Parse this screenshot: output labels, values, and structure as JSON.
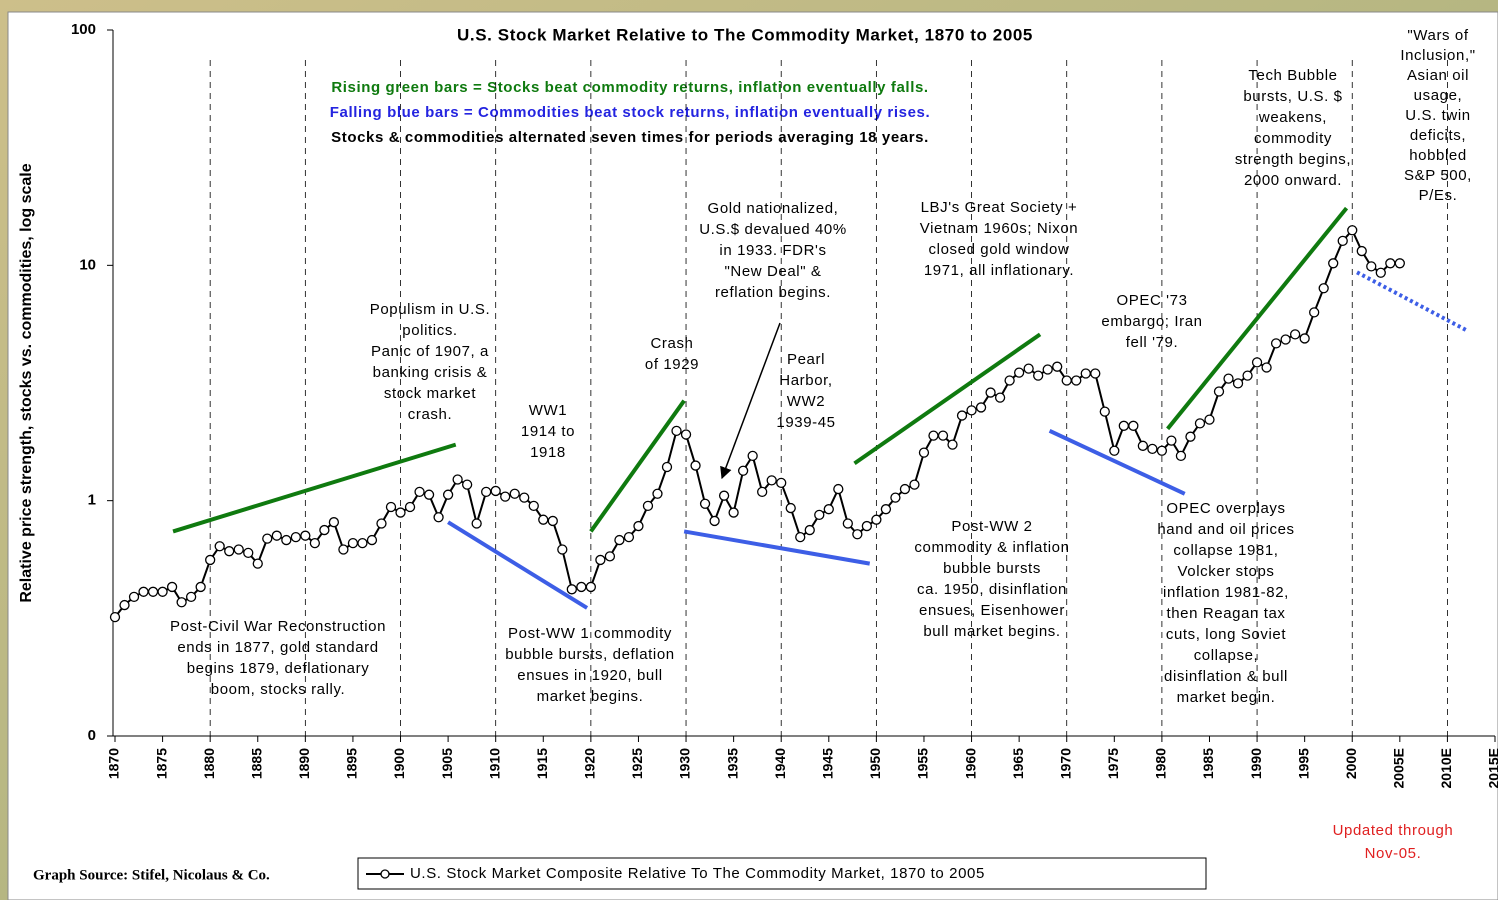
{
  "chart_data": {
    "type": "line",
    "title": "U.S. Stock Market Relative to The Commodity Market, 1870 to 2005",
    "subtitles": [
      {
        "text": "Rising green bars = Stocks beat commodity returns, inflation eventually falls.",
        "color": "#0f7a0f"
      },
      {
        "text": "Falling blue bars = Commodities beat stock returns, inflation eventually rises.",
        "color": "#2424e0"
      },
      {
        "text": "Stocks & commodities alternated seven times for periods averaging 18 years.",
        "color": "#000000"
      }
    ],
    "y_label": "Relative price strength, stocks vs. commodities, log scale",
    "log_scale": true,
    "ylim": [
      0.1,
      100
    ],
    "yticks": [
      {
        "value": 0.1,
        "label": "0"
      },
      1,
      10,
      100
    ],
    "xlim": [
      1870,
      2015
    ],
    "xticks": [
      1870,
      1875,
      1880,
      1885,
      1890,
      1895,
      1900,
      1905,
      1910,
      1915,
      1920,
      1925,
      1930,
      1935,
      1940,
      1945,
      1950,
      1955,
      1960,
      1965,
      1970,
      1975,
      1980,
      1985,
      1990,
      1995,
      2000,
      {
        "value": 2005,
        "label": "2005E"
      },
      {
        "value": 2010,
        "label": "2010E"
      },
      {
        "value": 2015,
        "label": "2015E"
      }
    ],
    "vlines": [
      1880,
      1890,
      1900,
      1910,
      1920,
      1930,
      1940,
      1950,
      1960,
      1970,
      1980,
      1990,
      2000,
      2010
    ],
    "x": [
      1870,
      1871,
      1872,
      1873,
      1874,
      1875,
      1876,
      1877,
      1878,
      1879,
      1880,
      1881,
      1882,
      1883,
      1884,
      1885,
      1886,
      1887,
      1888,
      1889,
      1890,
      1891,
      1892,
      1893,
      1894,
      1895,
      1896,
      1897,
      1898,
      1899,
      1900,
      1901,
      1902,
      1903,
      1904,
      1905,
      1906,
      1907,
      1908,
      1909,
      1910,
      1911,
      1912,
      1913,
      1914,
      1915,
      1916,
      1917,
      1918,
      1919,
      1920,
      1921,
      1922,
      1923,
      1924,
      1925,
      1926,
      1927,
      1928,
      1929,
      1930,
      1931,
      1932,
      1933,
      1934,
      1935,
      1936,
      1937,
      1938,
      1939,
      1940,
      1941,
      1942,
      1943,
      1944,
      1945,
      1946,
      1947,
      1948,
      1949,
      1950,
      1951,
      1952,
      1953,
      1954,
      1955,
      1956,
      1957,
      1958,
      1959,
      1960,
      1961,
      1962,
      1963,
      1964,
      1965,
      1966,
      1967,
      1968,
      1969,
      1970,
      1971,
      1972,
      1973,
      1974,
      1975,
      1976,
      1977,
      1978,
      1979,
      1980,
      1981,
      1982,
      1983,
      1984,
      1985,
      1986,
      1987,
      1988,
      1989,
      1990,
      1991,
      1992,
      1993,
      1994,
      1995,
      1996,
      1997,
      1998,
      1999,
      2000,
      2001,
      2002,
      2003,
      2004,
      2005
    ],
    "series": [
      {
        "name": "U.S. Stock Market Composite Relative To The Commodity Market, 1870 to 2005",
        "color": "#000000",
        "values": [
          0.32,
          0.36,
          0.39,
          0.41,
          0.41,
          0.41,
          0.43,
          0.37,
          0.39,
          0.43,
          0.56,
          0.64,
          0.61,
          0.62,
          0.6,
          0.54,
          0.69,
          0.71,
          0.68,
          0.7,
          0.71,
          0.66,
          0.75,
          0.81,
          0.62,
          0.66,
          0.66,
          0.68,
          0.8,
          0.94,
          0.89,
          0.94,
          1.09,
          1.06,
          0.85,
          1.06,
          1.23,
          1.17,
          0.8,
          1.09,
          1.1,
          1.04,
          1.07,
          1.03,
          0.95,
          0.83,
          0.82,
          0.62,
          0.42,
          0.43,
          0.43,
          0.56,
          0.58,
          0.68,
          0.7,
          0.78,
          0.95,
          1.07,
          1.39,
          1.98,
          1.91,
          1.41,
          0.97,
          0.82,
          1.05,
          0.89,
          1.34,
          1.55,
          1.09,
          1.22,
          1.19,
          0.93,
          0.7,
          0.75,
          0.87,
          0.92,
          1.12,
          0.8,
          0.72,
          0.78,
          0.83,
          0.92,
          1.03,
          1.12,
          1.17,
          1.6,
          1.89,
          1.89,
          1.73,
          2.3,
          2.42,
          2.49,
          2.88,
          2.74,
          3.24,
          3.5,
          3.64,
          3.4,
          3.61,
          3.71,
          3.24,
          3.24,
          3.47,
          3.47,
          2.39,
          1.63,
          2.08,
          2.08,
          1.71,
          1.66,
          1.63,
          1.8,
          1.55,
          1.87,
          2.13,
          2.21,
          2.91,
          3.3,
          3.15,
          3.4,
          3.87,
          3.68,
          4.66,
          4.84,
          5.09,
          4.89,
          6.31,
          7.99,
          10.2,
          12.7,
          14.1,
          11.5,
          9.9,
          9.3,
          10.2,
          10.2
        ]
      }
    ],
    "trend_lines": [
      {
        "color": "#0f7a0f",
        "x": [
          1876.1,
          1905.8
        ],
        "y": [
          0.74,
          1.73
        ]
      },
      {
        "color": "#0f7a0f",
        "x": [
          1920,
          1929.8
        ],
        "y": [
          0.74,
          2.66
        ]
      },
      {
        "color": "#0f7a0f",
        "x": [
          1947.7,
          1967.2
        ],
        "y": [
          1.44,
          5.09
        ]
      },
      {
        "color": "#0f7a0f",
        "x": [
          1980.6,
          1999.4
        ],
        "y": [
          2.02,
          17.5
        ]
      },
      {
        "color": "#3d5ee6",
        "x": [
          1905,
          1919.6
        ],
        "y": [
          0.81,
          0.35
        ]
      },
      {
        "color": "#3d5ee6",
        "x": [
          1929.8,
          1949.3
        ],
        "y": [
          0.74,
          0.54
        ]
      },
      {
        "color": "#3d5ee6",
        "x": [
          1968.2,
          1982.4
        ],
        "y": [
          1.98,
          1.07
        ]
      },
      {
        "color": "#3d5ee6",
        "x": [
          2000.5,
          2012
        ],
        "y": [
          9.34,
          5.3
        ],
        "dotted": true
      }
    ],
    "annotations": [
      [
        "Post-Civil War Reconstruction",
        "ends in 1877, gold standard",
        "begins 1879, deflationary",
        "boom, stocks rally."
      ],
      [
        "Populism in U.S.",
        "politics.",
        "Panic of 1907, a",
        "banking crisis &",
        "stock market",
        "crash."
      ],
      [
        "WW1",
        "1914 to",
        "1918"
      ],
      [
        "Post-WW 1 commodity",
        "bubble bursts, deflation",
        "ensues in 1920, bull",
        "market begins."
      ],
      [
        "Crash",
        "of 1929"
      ],
      [
        "Gold nationalized,",
        "U.S.$ devalued 40%",
        "in 1933. FDR's",
        "\"New Deal\" &",
        "reflation begins."
      ],
      [
        "Pearl",
        "Harbor,",
        "WW2",
        "1939-45"
      ],
      [
        "LBJ's Great Society +",
        "Vietnam 1960s; Nixon",
        "closed gold window",
        "1971, all inflationary."
      ],
      [
        "Post-WW 2",
        "commodity & inflation",
        "bubble bursts",
        "ca. 1950, disinflation",
        "ensues, Eisenhower",
        "bull market begins."
      ],
      [
        "OPEC '73",
        "embargo; Iran",
        "fell '79."
      ],
      [
        "Tech Bubble",
        "bursts, U.S. $",
        "weakens,",
        "commodity",
        "strength begins,",
        "2000 onward."
      ],
      [
        "\"Wars of",
        "Inclusion,\"",
        "Asian oil",
        "usage,",
        "U.S. twin",
        "deficits,",
        "hobbled",
        "S&P 500,",
        "P/Es."
      ],
      [
        "OPEC overplays",
        "hand and oil prices",
        "collapse 1981,",
        "Volcker stops",
        "inflation 1981-82,",
        "then Reagan tax",
        "cuts, long Soviet",
        "collapse,",
        "disinflation & bull",
        "market begin."
      ]
    ],
    "updated": [
      "Updated through",
      "Nov-05."
    ],
    "source": "Graph Source: Stifel, Nicolaus & Co."
  }
}
